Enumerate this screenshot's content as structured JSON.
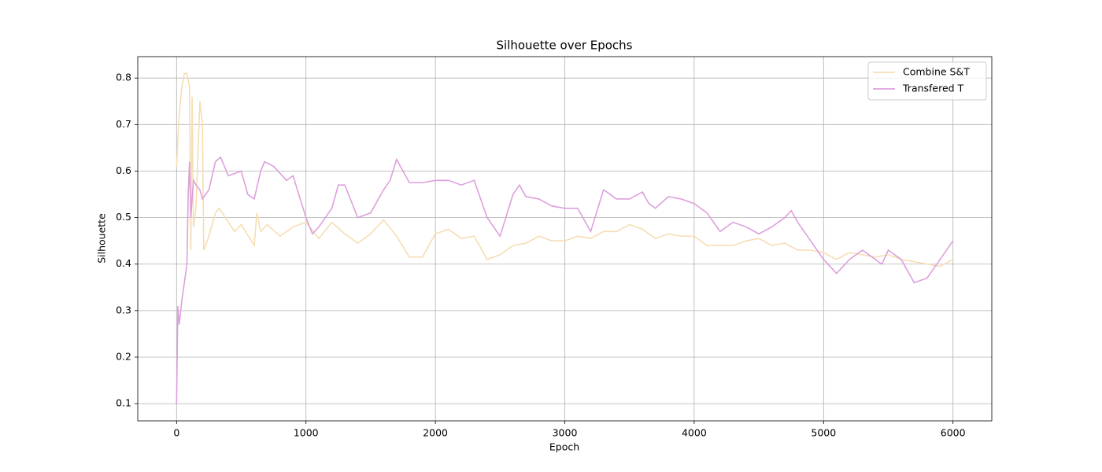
{
  "chart_data": {
    "type": "line",
    "title": "Silhouette over Epochs",
    "xlabel": "Epoch",
    "ylabel": "Silhouette",
    "xlim": [
      -300,
      6300
    ],
    "ylim": [
      0.063,
      0.846
    ],
    "xticks": [
      0,
      1000,
      2000,
      3000,
      4000,
      5000,
      6000
    ],
    "yticks": [
      0.1,
      0.2,
      0.3,
      0.4,
      0.5,
      0.6,
      0.7,
      0.8
    ],
    "grid": true,
    "legend": "upper right",
    "series": [
      {
        "name": "Combine S&T",
        "color": "#f5deb3",
        "x": [
          0,
          20,
          40,
          60,
          80,
          100,
          110,
          120,
          130,
          150,
          180,
          200,
          210,
          250,
          300,
          330,
          400,
          450,
          500,
          600,
          620,
          650,
          700,
          800,
          900,
          1000,
          1100,
          1200,
          1300,
          1400,
          1500,
          1600,
          1700,
          1800,
          1900,
          2000,
          2100,
          2200,
          2300,
          2400,
          2500,
          2600,
          2700,
          2800,
          2900,
          3000,
          3100,
          3200,
          3300,
          3400,
          3500,
          3600,
          3700,
          3800,
          3900,
          4000,
          4100,
          4200,
          4300,
          4400,
          4500,
          4600,
          4700,
          4800,
          4900,
          5000,
          5100,
          5200,
          5300,
          5400,
          5500,
          5600,
          5700,
          5800,
          5900,
          6000
        ],
        "values": [
          0.61,
          0.72,
          0.78,
          0.81,
          0.81,
          0.78,
          0.43,
          0.76,
          0.48,
          0.52,
          0.75,
          0.7,
          0.43,
          0.46,
          0.51,
          0.52,
          0.49,
          0.47,
          0.485,
          0.44,
          0.51,
          0.47,
          0.485,
          0.46,
          0.48,
          0.49,
          0.455,
          0.49,
          0.465,
          0.445,
          0.465,
          0.495,
          0.46,
          0.415,
          0.415,
          0.465,
          0.475,
          0.455,
          0.46,
          0.41,
          0.42,
          0.44,
          0.445,
          0.46,
          0.45,
          0.45,
          0.46,
          0.455,
          0.47,
          0.47,
          0.485,
          0.475,
          0.455,
          0.465,
          0.46,
          0.46,
          0.44,
          0.44,
          0.44,
          0.45,
          0.455,
          0.44,
          0.445,
          0.43,
          0.43,
          0.425,
          0.41,
          0.425,
          0.42,
          0.415,
          0.42,
          0.41,
          0.405,
          0.4,
          0.395,
          0.41
        ]
      },
      {
        "name": "Transfered T",
        "color": "#dda0dd",
        "x": [
          0,
          10,
          20,
          40,
          60,
          80,
          90,
          100,
          110,
          130,
          150,
          180,
          200,
          250,
          300,
          340,
          400,
          500,
          550,
          600,
          650,
          680,
          750,
          850,
          900,
          1000,
          1050,
          1100,
          1150,
          1200,
          1250,
          1300,
          1400,
          1500,
          1600,
          1650,
          1700,
          1800,
          1900,
          2000,
          2100,
          2200,
          2300,
          2400,
          2500,
          2600,
          2650,
          2700,
          2800,
          2900,
          3000,
          3100,
          3200,
          3300,
          3400,
          3500,
          3600,
          3650,
          3700,
          3800,
          3900,
          4000,
          4100,
          4200,
          4300,
          4400,
          4500,
          4600,
          4700,
          4750,
          4800,
          4900,
          5000,
          5100,
          5200,
          5300,
          5400,
          5450,
          5500,
          5600,
          5700,
          5800,
          5900,
          6000
        ],
        "values": [
          0.1,
          0.31,
          0.27,
          0.32,
          0.36,
          0.4,
          0.55,
          0.62,
          0.5,
          0.58,
          0.57,
          0.56,
          0.54,
          0.56,
          0.62,
          0.63,
          0.59,
          0.6,
          0.55,
          0.54,
          0.6,
          0.62,
          0.61,
          0.58,
          0.59,
          0.5,
          0.465,
          0.48,
          0.5,
          0.52,
          0.57,
          0.57,
          0.5,
          0.51,
          0.56,
          0.58,
          0.625,
          0.575,
          0.575,
          0.58,
          0.58,
          0.57,
          0.58,
          0.5,
          0.46,
          0.55,
          0.57,
          0.545,
          0.54,
          0.525,
          0.52,
          0.52,
          0.47,
          0.56,
          0.54,
          0.54,
          0.555,
          0.53,
          0.52,
          0.545,
          0.54,
          0.53,
          0.51,
          0.47,
          0.49,
          0.48,
          0.465,
          0.48,
          0.5,
          0.515,
          0.49,
          0.45,
          0.41,
          0.38,
          0.41,
          0.43,
          0.41,
          0.4,
          0.43,
          0.41,
          0.36,
          0.37,
          0.41,
          0.45
        ]
      }
    ]
  }
}
